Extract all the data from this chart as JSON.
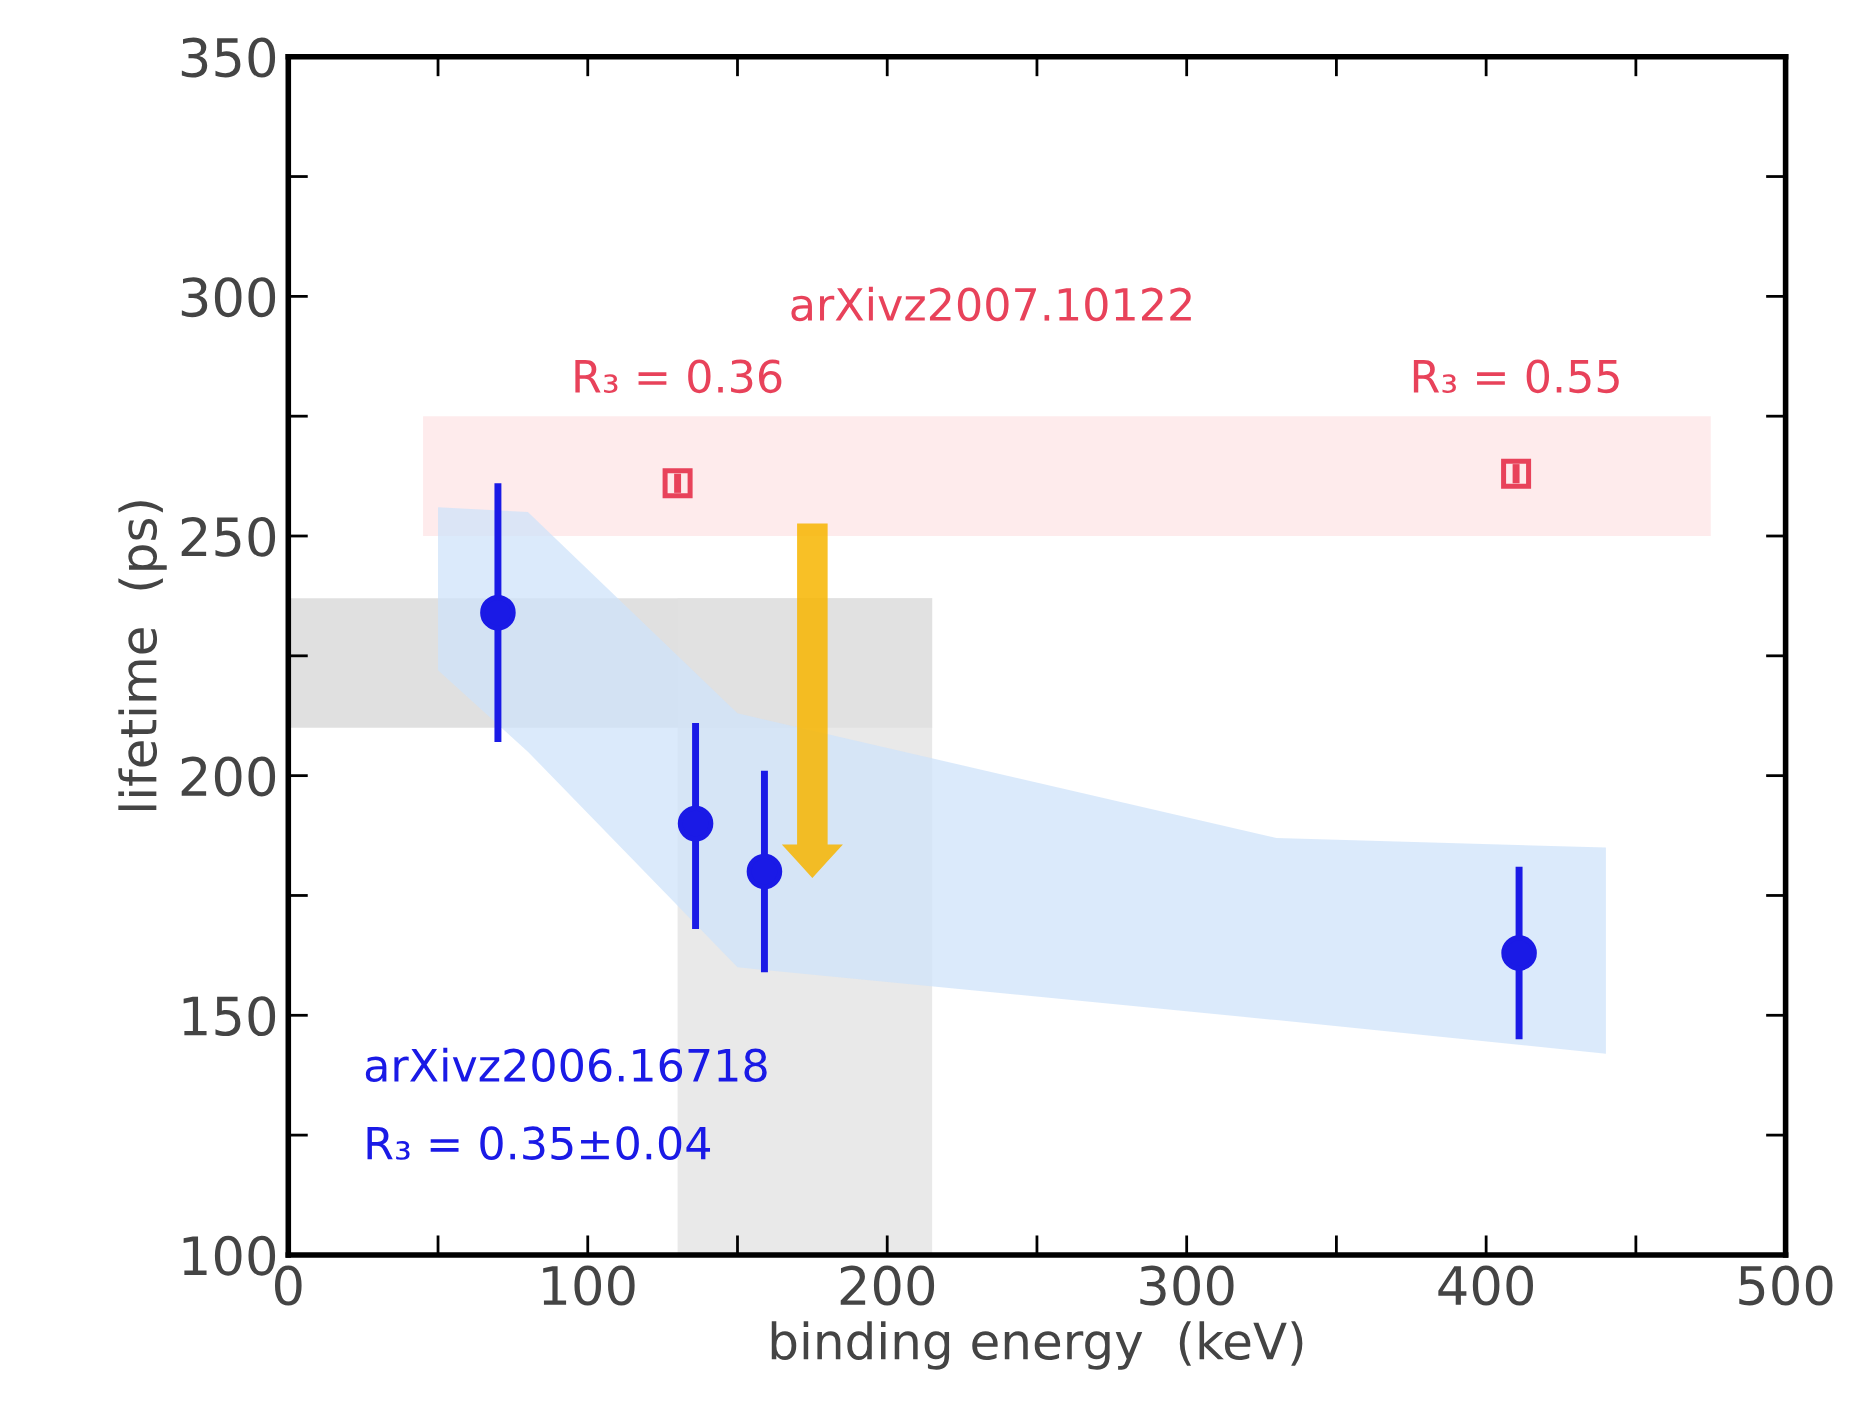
{
  "chart_data": {
    "type": "scatter",
    "xlabel": "binding energy  (keV)",
    "ylabel": "lifetime  (ps)",
    "xlim": [
      0,
      500
    ],
    "ylim": [
      100,
      350
    ],
    "xticks": [
      0,
      {
        "value": 50,
        "label": null
      },
      100,
      {
        "value": 150,
        "label": null
      },
      200,
      {
        "value": 250,
        "label": null
      },
      300,
      {
        "value": 350,
        "label": null
      },
      400,
      {
        "value": 450,
        "label": null
      },
      500
    ],
    "yticks": [
      100,
      {
        "value": 125,
        "label": null
      },
      150,
      {
        "value": 175,
        "label": null
      },
      200,
      {
        "value": 225,
        "label": null
      },
      250,
      {
        "value": 275,
        "label": null
      },
      300,
      {
        "value": 325,
        "label": null
      },
      350
    ],
    "grid": false,
    "series": [
      {
        "type": "area",
        "color": "#fde4e6",
        "x": [
          45,
          475
        ],
        "lower": [
          250,
          250
        ],
        "upper": [
          275,
          275
        ],
        "values": [
          null,
          null
        ]
      },
      {
        "type": "area",
        "color": "#d6d6d6",
        "x": [
          0,
          215
        ],
        "lower": [
          210,
          210
        ],
        "upper": [
          237,
          237
        ],
        "values": [
          null,
          null
        ]
      },
      {
        "type": "area",
        "color": "#e2e2e2",
        "x": [
          130,
          215
        ],
        "lower": [
          100,
          100
        ],
        "upper": [
          237,
          237
        ],
        "values": [
          null,
          null
        ]
      },
      {
        "type": "area",
        "color": "#cfe3fa",
        "x": [
          50,
          80,
          150,
          330,
          440
        ],
        "lower": [
          222,
          205,
          160,
          149,
          142
        ],
        "upper": [
          256,
          255,
          213,
          187,
          185
        ],
        "values": [
          null,
          null,
          null,
          null,
          null
        ]
      },
      {
        "color": "#e8425a",
        "marker": "square",
        "x": [
          130,
          410
        ],
        "values": [
          261,
          263
        ],
        "errors": [
          2,
          2
        ]
      },
      {
        "color": "#1a1ae6",
        "marker": "circle",
        "x": [
          70,
          136,
          159,
          411
        ],
        "values": [
          234,
          190,
          180,
          163
        ],
        "errors": [
          [
            207,
            261
          ],
          [
            168,
            211
          ],
          [
            159,
            201
          ],
          [
            145,
            181
          ]
        ]
      }
    ],
    "annotations": [
      "arXivz2007.10122",
      "R₃ = 0.36",
      "R₃ = 0.55",
      "arXivz2006.16718",
      "R₃ = 0.35±0.04"
    ]
  }
}
